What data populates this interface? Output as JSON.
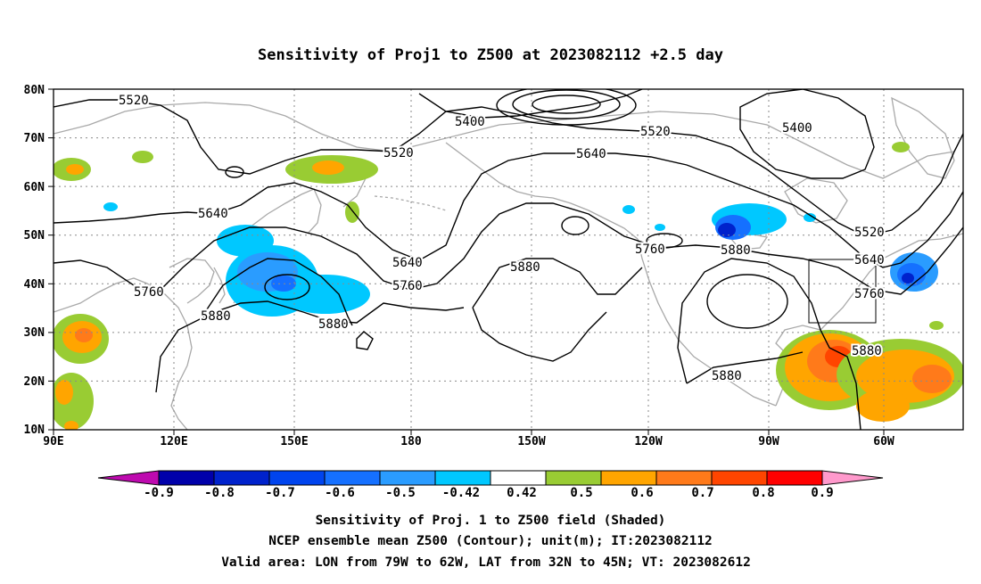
{
  "title": "Sensitivity of Proj1 to Z500 at 2023082112 +2.5 day",
  "lat_labels": [
    "80N",
    "70N",
    "60N",
    "50N",
    "40N",
    "30N",
    "20N",
    "10N"
  ],
  "lon_labels": [
    "90E",
    "120E",
    "150E",
    "180",
    "150W",
    "120W",
    "90W",
    "60W"
  ],
  "contour_labels": [
    "5520",
    "5400",
    "5520",
    "5520",
    "5640",
    "5400",
    "5640",
    "5640",
    "5760",
    "5760",
    "5880",
    "5880",
    "5760",
    "5880",
    "5880",
    "5520",
    "5640",
    "5760",
    "5880",
    "5880"
  ],
  "colorbar": {
    "labels": [
      "-0.9",
      "-0.8",
      "-0.7",
      "-0.6",
      "-0.5",
      "-0.42",
      "0.42",
      "0.5",
      "0.6",
      "0.7",
      "0.8",
      "0.9"
    ],
    "colors": [
      "#be0aaf",
      "#0000aa",
      "#0022cc",
      "#0044ee",
      "#1570ff",
      "#2a9cff",
      "#00c8ff",
      "#ffffff",
      "#99cc33",
      "#ffa500",
      "#ff7a1a",
      "#ff4500",
      "#ff0000",
      "#ff99cc"
    ]
  },
  "captions": {
    "line1": "Sensitivity of Proj. 1 to Z500 field (Shaded)",
    "line2": "NCEP ensemble mean Z500 (Contour); unit(m); IT:2023082112",
    "line3": "Valid area: LON from 79W to 62W, LAT from 32N to 45N; VT: 2023082612"
  },
  "valid_area_box": {
    "lon_min": -79,
    "lon_max": -62,
    "lat_min": 32,
    "lat_max": 45
  }
}
